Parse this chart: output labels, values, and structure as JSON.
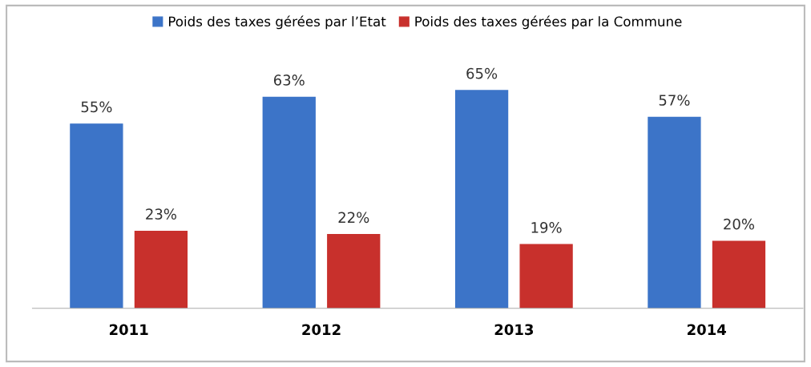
{
  "chart_data": {
    "type": "bar",
    "categories": [
      "2011",
      "2012",
      "2013",
      "2014"
    ],
    "series": [
      {
        "name": "Poids des taxes gérées par l’Etat",
        "color": "#3c74c8",
        "values": [
          55,
          63,
          65,
          57
        ],
        "value_labels": [
          "55%",
          "63%",
          "65%",
          "57%"
        ]
      },
      {
        "name": "Poids des taxes gérées par la Commune",
        "color": "#c8302c",
        "values": [
          23,
          22,
          19,
          20
        ],
        "value_labels": [
          "23%",
          "22%",
          "19%",
          "20%"
        ]
      }
    ],
    "legend": "top",
    "grid": false
  }
}
